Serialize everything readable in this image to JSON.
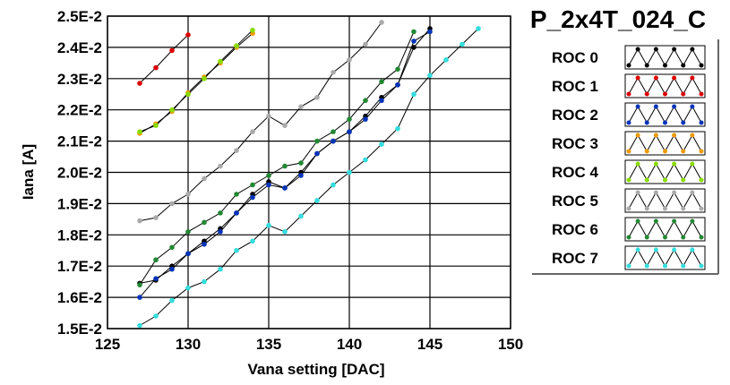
{
  "chart_data": {
    "type": "line",
    "title": "P_2x4T_024_C",
    "xlabel": "Vana setting [DAC]",
    "ylabel": "Iana [A]",
    "xlim": [
      125,
      150
    ],
    "ylim": [
      0.015,
      0.025
    ],
    "x_ticks": [
      125,
      130,
      135,
      140,
      145,
      150
    ],
    "y_ticks": [
      0.015,
      0.016,
      0.017,
      0.018,
      0.019,
      0.02,
      0.021,
      0.022,
      0.023,
      0.024,
      0.025
    ],
    "y_tick_labels": [
      "1.5E-2",
      "1.6E-2",
      "1.7E-2",
      "1.8E-2",
      "1.9E-2",
      "2.0E-2",
      "2.1E-2",
      "2.2E-2",
      "2.3E-2",
      "2.4E-2",
      "2.5E-2"
    ],
    "grid": true,
    "legend_position": "right",
    "series": [
      {
        "name": "ROC 0",
        "color": "#000000",
        "x": [
          127,
          128,
          129,
          130,
          131,
          132,
          133,
          134,
          135,
          136,
          137,
          138,
          139,
          140,
          141,
          142,
          143,
          144,
          145
        ],
        "y": [
          0.01645,
          0.01655,
          0.017,
          0.0174,
          0.0178,
          0.0182,
          0.0187,
          0.0193,
          0.0197,
          0.0195,
          0.02,
          0.0206,
          0.021,
          0.0213,
          0.0218,
          0.0224,
          0.0228,
          0.024,
          0.0246
        ]
      },
      {
        "name": "ROC 1",
        "color": "#dd0000",
        "x": [
          127,
          128,
          129,
          130
        ],
        "y": [
          0.02285,
          0.02335,
          0.0239,
          0.0244
        ]
      },
      {
        "name": "ROC 2",
        "color": "#0033bb",
        "x": [
          127,
          128,
          129,
          130,
          131,
          132,
          133,
          134,
          135,
          136,
          137,
          138,
          139,
          140,
          141,
          142,
          143,
          144,
          145
        ],
        "y": [
          0.016,
          0.0166,
          0.0169,
          0.0174,
          0.0177,
          0.0181,
          0.0187,
          0.0192,
          0.0196,
          0.0195,
          0.0199,
          0.0206,
          0.021,
          0.0213,
          0.0217,
          0.0223,
          0.0228,
          0.0242,
          0.0245
        ]
      },
      {
        "name": "ROC 3",
        "color": "#ee9900",
        "x": [
          127,
          128,
          129,
          130,
          131,
          132,
          133,
          134
        ],
        "y": [
          0.02125,
          0.02155,
          0.02195,
          0.02255,
          0.02305,
          0.0235,
          0.024,
          0.02445
        ]
      },
      {
        "name": "ROC 4",
        "color": "#88dd00",
        "x": [
          127,
          128,
          129,
          130,
          131,
          132,
          133,
          134
        ],
        "y": [
          0.0213,
          0.0215,
          0.022,
          0.0225,
          0.023,
          0.02355,
          0.02405,
          0.02455
        ]
      },
      {
        "name": "ROC 5",
        "color": "#aaaaaa",
        "x": [
          127,
          128,
          129,
          130,
          131,
          132,
          133,
          134,
          135,
          136,
          137,
          138,
          139,
          140,
          141,
          142
        ],
        "y": [
          0.01845,
          0.01855,
          0.019,
          0.0193,
          0.0198,
          0.0202,
          0.0207,
          0.0213,
          0.0218,
          0.0215,
          0.0221,
          0.0224,
          0.0232,
          0.0236,
          0.0241,
          0.0248
        ]
      },
      {
        "name": "ROC 6",
        "color": "#228833",
        "x": [
          127,
          128,
          129,
          130,
          131,
          132,
          133,
          134,
          135,
          136,
          137,
          138,
          139,
          140,
          141,
          142,
          143,
          144
        ],
        "y": [
          0.0164,
          0.0172,
          0.0176,
          0.0181,
          0.0184,
          0.0187,
          0.0193,
          0.0196,
          0.0199,
          0.0202,
          0.0203,
          0.021,
          0.0213,
          0.0217,
          0.0223,
          0.0229,
          0.0233,
          0.0245
        ]
      },
      {
        "name": "ROC 7",
        "color": "#33dddd",
        "x": [
          127,
          128,
          129,
          130,
          131,
          132,
          133,
          134,
          135,
          136,
          137,
          138,
          139,
          140,
          141,
          142,
          143,
          144,
          145,
          146,
          147,
          148
        ],
        "y": [
          0.0151,
          0.0154,
          0.0159,
          0.0163,
          0.0165,
          0.0169,
          0.0175,
          0.0178,
          0.0183,
          0.0181,
          0.0186,
          0.0191,
          0.0196,
          0.02,
          0.0204,
          0.0209,
          0.0214,
          0.0225,
          0.0231,
          0.0236,
          0.0241,
          0.0246
        ]
      }
    ]
  }
}
